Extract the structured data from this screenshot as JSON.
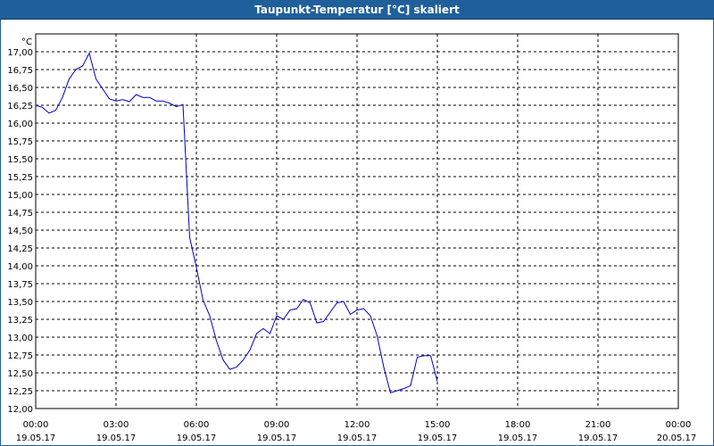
{
  "window": {
    "title": "Taupunkt-Temperatur [°C] skaliert"
  },
  "chart_data": {
    "type": "line",
    "title": "Taupunkt-Temperatur [°C] skaliert",
    "ylabel": "°C",
    "xlabel": "",
    "ylim": [
      12.0,
      17.0
    ],
    "xlim_hours": [
      0,
      24
    ],
    "grid": true,
    "line_color": "#0000cc",
    "y_ticks": [
      "17,00",
      "16,75",
      "16,50",
      "16,25",
      "16,00",
      "15,75",
      "15,50",
      "15,25",
      "15,00",
      "14,75",
      "14,50",
      "14,25",
      "14,00",
      "13,75",
      "13,50",
      "13,25",
      "13,00",
      "12,75",
      "12,50",
      "12,25",
      "12,00"
    ],
    "x_ticks": [
      {
        "time": "00:00",
        "date": "19.05.17"
      },
      {
        "time": "03:00",
        "date": "19.05.17"
      },
      {
        "time": "06:00",
        "date": "19.05.17"
      },
      {
        "time": "09:00",
        "date": "19.05.17"
      },
      {
        "time": "12:00",
        "date": "19.05.17"
      },
      {
        "time": "15:00",
        "date": "19.05.17"
      },
      {
        "time": "18:00",
        "date": "19.05.17"
      },
      {
        "time": "21:00",
        "date": "19.05.17"
      },
      {
        "time": "00:00",
        "date": "20.05.17"
      }
    ],
    "series": [
      {
        "x_hours": [
          0.0,
          0.25,
          0.5,
          0.75,
          1.0,
          1.25,
          1.5,
          1.75,
          2.0,
          2.25,
          2.5,
          2.75,
          3.0,
          3.25,
          3.5,
          3.75,
          4.0,
          4.25,
          4.5,
          4.75,
          5.0,
          5.25,
          5.5,
          5.75,
          6.0,
          6.25,
          6.5,
          6.75,
          7.0,
          7.25,
          7.5,
          7.75,
          8.0,
          8.25,
          8.5,
          8.75,
          9.0,
          9.25,
          9.5,
          9.75,
          10.0,
          10.25,
          10.5,
          10.75,
          11.0,
          11.25,
          11.5,
          11.75,
          12.0,
          12.25,
          12.5,
          12.75,
          13.0,
          13.25,
          13.5,
          13.75,
          14.0,
          14.25,
          14.5,
          14.75,
          15.0
        ],
        "values": [
          16.25,
          16.22,
          16.14,
          16.18,
          16.36,
          16.62,
          16.75,
          16.8,
          16.98,
          16.62,
          16.48,
          16.34,
          16.31,
          16.33,
          16.3,
          16.4,
          16.36,
          16.36,
          16.31,
          16.31,
          16.28,
          16.23,
          16.26,
          14.4,
          13.98,
          13.52,
          13.3,
          12.95,
          12.68,
          12.55,
          12.58,
          12.68,
          12.82,
          13.05,
          13.12,
          13.05,
          13.3,
          13.25,
          13.38,
          13.4,
          13.53,
          13.48,
          13.2,
          13.22,
          13.35,
          13.48,
          13.5,
          13.32,
          13.38,
          13.4,
          13.3,
          13.02,
          12.58,
          12.22,
          12.25,
          12.28,
          12.32,
          12.72,
          12.74,
          12.74,
          12.38
        ]
      }
    ]
  }
}
